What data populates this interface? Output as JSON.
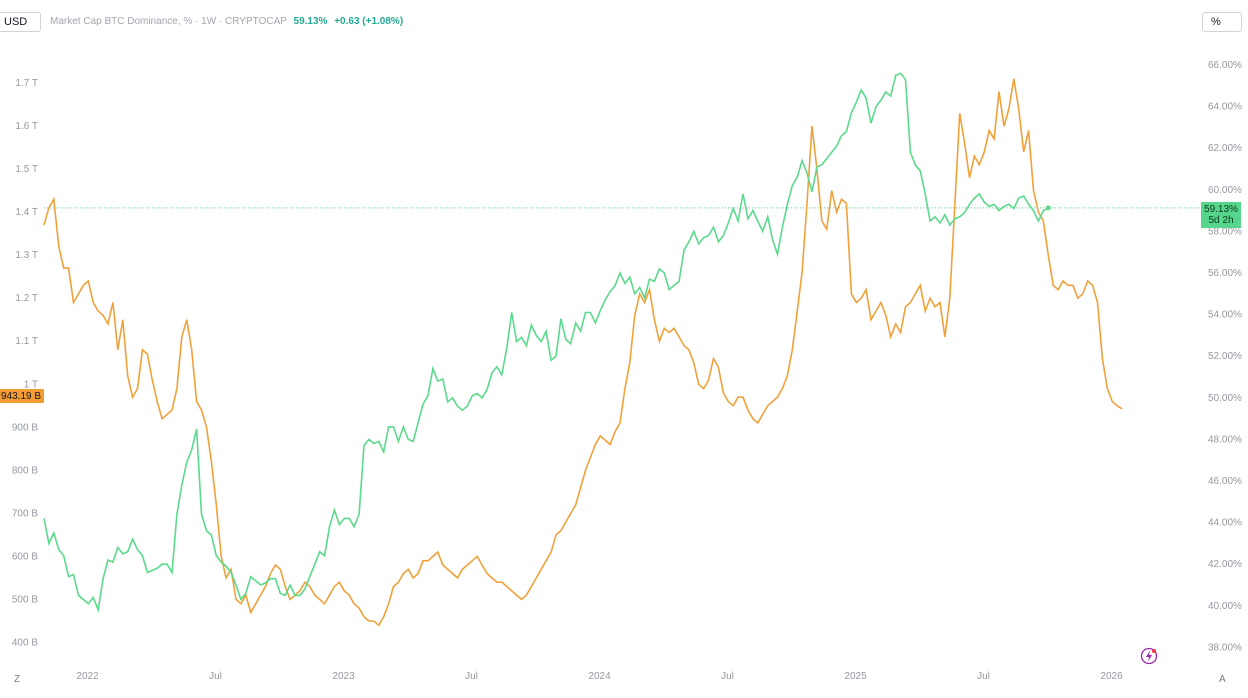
{
  "toolbar": {
    "currency_button": "USD",
    "percent_button": "%"
  },
  "legend": {
    "title": "Market Cap BTC Dominance, % · 1W · CRYPTOCAP",
    "value": "59.13%",
    "change": "+0.63 (+1.08%)"
  },
  "badges": {
    "left_price": "943.19 B",
    "right_price": "59.13%",
    "right_countdown": "5d 2h"
  },
  "corner_labels": {
    "left": "Z",
    "right": "A"
  },
  "colors": {
    "market_cap_line": "#f0a13a",
    "dominance_line": "#5bd98c",
    "axis_text": "#9598a1",
    "price_line": "#5bd98c"
  },
  "chart_data": {
    "type": "line",
    "left_axis": {
      "unit": "USD",
      "ylim": [
        350,
        1800
      ],
      "ticks": [
        400,
        500,
        600,
        700,
        800,
        900,
        1000,
        1100,
        1200,
        1300,
        1400,
        1500,
        1600,
        1700
      ],
      "tick_labels": [
        "400 B",
        "500 B",
        "600 B",
        "700 B",
        "800 B",
        "900 B",
        "1 T",
        "1.1 T",
        "1.2 T",
        "1.3 T",
        "1.4 T",
        "1.5 T",
        "1.6 T",
        "1.7 T"
      ]
    },
    "right_axis": {
      "unit": "%",
      "ylim": [
        37.2,
        67.2
      ],
      "ticks": [
        38,
        40,
        42,
        44,
        46,
        48,
        50,
        52,
        54,
        56,
        58,
        60,
        62,
        64,
        66
      ],
      "tick_labels": [
        "38.00%",
        "40.00%",
        "42.00%",
        "44.00%",
        "46.00%",
        "48.00%",
        "50.00%",
        "52.00%",
        "54.00%",
        "56.00%",
        "58.00%",
        "60.00%",
        "62.00%",
        "64.00%",
        "66.00%"
      ]
    },
    "x_axis": {
      "range_months": [
        2021.83,
        2026.33
      ],
      "ticks": [
        2022.0,
        2022.5,
        2023.0,
        2023.5,
        2024.0,
        2024.5,
        2025.0,
        2025.5,
        2026.0
      ],
      "tick_labels": [
        "2022",
        "Jul",
        "2023",
        "Jul",
        "2024",
        "Jul",
        "2025",
        "Jul",
        "2026"
      ]
    },
    "current_values": {
      "market_cap": 943.19,
      "dominance": 59.13
    },
    "series": [
      {
        "name": "Market Cap BTC",
        "axis": "left",
        "x_start": 2021.83,
        "x_step": 0.01923,
        "values": [
          1370,
          1410,
          1430,
          1320,
          1270,
          1270,
          1190,
          1210,
          1230,
          1240,
          1190,
          1170,
          1160,
          1140,
          1190,
          1080,
          1150,
          1020,
          970,
          990,
          1080,
          1070,
          1010,
          960,
          920,
          930,
          940,
          990,
          1110,
          1150,
          1080,
          960,
          940,
          900,
          820,
          720,
          600,
          550,
          570,
          500,
          490,
          510,
          470,
          490,
          510,
          530,
          560,
          580,
          570,
          530,
          500,
          510,
          520,
          540,
          530,
          510,
          500,
          490,
          510,
          530,
          540,
          520,
          510,
          490,
          480,
          460,
          450,
          450,
          440,
          460,
          490,
          530,
          540,
          560,
          570,
          550,
          560,
          590,
          590,
          600,
          610,
          580,
          570,
          560,
          550,
          570,
          580,
          590,
          600,
          580,
          560,
          550,
          540,
          540,
          530,
          520,
          510,
          500,
          510,
          530,
          550,
          570,
          590,
          610,
          650,
          660,
          680,
          700,
          720,
          760,
          800,
          830,
          860,
          880,
          870,
          860,
          890,
          910,
          990,
          1050,
          1160,
          1210,
          1190,
          1220,
          1150,
          1100,
          1130,
          1120,
          1130,
          1110,
          1090,
          1080,
          1050,
          1000,
          990,
          1010,
          1060,
          1040,
          980,
          960,
          950,
          970,
          970,
          940,
          920,
          910,
          930,
          950,
          960,
          970,
          990,
          1020,
          1080,
          1170,
          1260,
          1420,
          1600,
          1500,
          1380,
          1360,
          1450,
          1400,
          1430,
          1420,
          1210,
          1190,
          1200,
          1220,
          1150,
          1170,
          1190,
          1160,
          1110,
          1140,
          1120,
          1180,
          1190,
          1210,
          1230,
          1170,
          1200,
          1180,
          1190,
          1110,
          1200,
          1410,
          1630,
          1560,
          1480,
          1530,
          1510,
          1540,
          1590,
          1570,
          1680,
          1600,
          1640,
          1710,
          1640,
          1540,
          1590,
          1450,
          1400,
          1380,
          1300,
          1230,
          1220,
          1240,
          1230,
          1230,
          1200,
          1210,
          1240,
          1230,
          1190,
          1060,
          990,
          960,
          950,
          943
        ]
      },
      {
        "name": "BTC Dominance",
        "axis": "right",
        "x_start": 2021.83,
        "x_step": 0.01923,
        "values": [
          44.2,
          43.0,
          43.5,
          42.7,
          42.4,
          41.4,
          41.5,
          40.5,
          40.3,
          40.1,
          40.4,
          39.8,
          41.3,
          42.2,
          42.1,
          42.8,
          42.5,
          42.6,
          43.2,
          42.7,
          42.4,
          41.6,
          41.7,
          41.8,
          42.0,
          42.0,
          41.6,
          44.4,
          45.8,
          46.9,
          47.5,
          48.5,
          44.4,
          43.6,
          43.4,
          42.4,
          42.1,
          41.9,
          41.6,
          41.0,
          40.3,
          40.6,
          41.4,
          41.2,
          41.0,
          41.1,
          41.3,
          41.3,
          40.6,
          40.5,
          41.0,
          40.5,
          40.5,
          40.8,
          41.4,
          42.0,
          42.6,
          42.4,
          43.8,
          44.6,
          43.9,
          44.2,
          44.2,
          43.8,
          44.4,
          47.7,
          48.0,
          47.8,
          47.9,
          47.4,
          48.6,
          48.6,
          47.9,
          48.6,
          48.0,
          47.9,
          48.8,
          49.7,
          50.1,
          51.4,
          50.8,
          50.9,
          49.8,
          50.0,
          49.6,
          49.4,
          49.6,
          50.1,
          50.2,
          50.0,
          50.4,
          51.2,
          51.5,
          51.1,
          52.4,
          54.1,
          52.7,
          52.9,
          52.5,
          53.5,
          53.0,
          52.7,
          53.2,
          51.8,
          52.0,
          53.8,
          52.8,
          52.6,
          53.6,
          53.2,
          54.1,
          54.1,
          53.6,
          54.2,
          54.7,
          55.1,
          55.4,
          56.0,
          55.5,
          55.8,
          55.0,
          55.3,
          54.8,
          55.7,
          55.6,
          56.2,
          56.0,
          55.2,
          55.4,
          55.6,
          57.1,
          57.5,
          58.0,
          57.4,
          57.7,
          57.8,
          58.2,
          57.5,
          57.8,
          58.4,
          59.1,
          58.5,
          59.8,
          58.6,
          59.0,
          58.5,
          58.0,
          58.7,
          57.6,
          56.9,
          58.2,
          59.3,
          60.2,
          60.6,
          61.4,
          60.8,
          59.9,
          61.1,
          61.2,
          61.5,
          61.8,
          62.1,
          62.6,
          62.8,
          63.7,
          64.2,
          64.8,
          64.4,
          63.2,
          64.0,
          64.3,
          64.7,
          64.5,
          65.5,
          65.6,
          65.3,
          61.8,
          61.2,
          60.9,
          59.8,
          58.5,
          58.7,
          58.4,
          58.8,
          58.3,
          58.6,
          58.7,
          58.9,
          59.3,
          59.6,
          59.8,
          59.4,
          59.2,
          59.3,
          59.0,
          59.2,
          59.3,
          59.1,
          59.6,
          59.7,
          59.3,
          59.0,
          58.5,
          59.0,
          59.13
        ]
      }
    ]
  }
}
